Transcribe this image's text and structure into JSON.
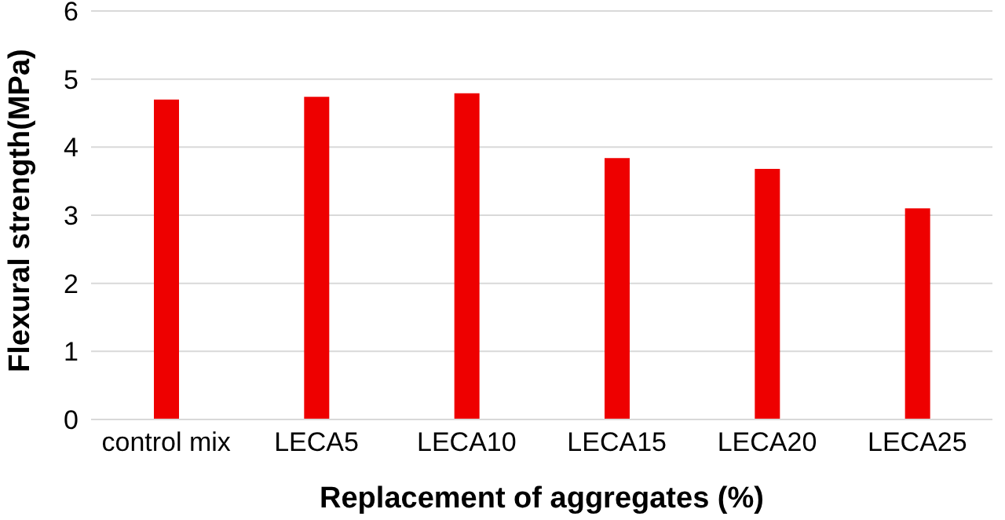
{
  "chart_data": {
    "type": "bar",
    "xlabel": "Replacement of aggregates (%)",
    "ylabel": "Flexural strength(MPa)",
    "categories": [
      "control mix",
      "LECA5",
      "LECA10",
      "LECA15",
      "LECA20",
      "LECA25"
    ],
    "values": [
      4.7,
      4.74,
      4.79,
      3.84,
      3.68,
      3.1
    ],
    "color": "#ee0000",
    "ylim": [
      0,
      6
    ],
    "yticks": [
      0,
      1,
      2,
      3,
      4,
      5,
      6
    ],
    "grid": "y"
  }
}
